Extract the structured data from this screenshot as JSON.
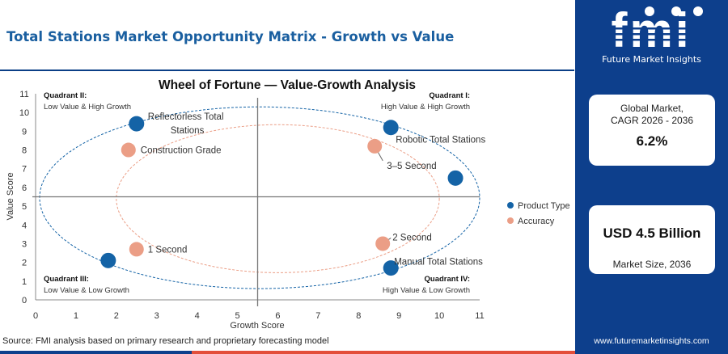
{
  "header": {
    "title": "Total Stations Market Opportunity Matrix - Growth vs Value"
  },
  "brand": {
    "logo": "fmi",
    "name": "Future Market Insights",
    "website": "www.futuremarketinsights.com"
  },
  "stats": {
    "cagr_label_1": "Global Market,",
    "cagr_label_2": "CAGR 2026 - 2036",
    "cagr_value": "6.2%",
    "size_value": "USD 4.5 Billion",
    "size_label": "Market Size, 2036"
  },
  "source": "Source: FMI analysis based on primary research and proprietary forecasting model",
  "colors": {
    "product": "#1463a6",
    "accuracy": "#eb9e86",
    "brand_blue": "#0d3f8c",
    "accent_red": "#e34e3a"
  },
  "chart_data": {
    "type": "scatter",
    "title": "Wheel of Fortune — Value-Growth Analysis",
    "xlabel": "Growth Score",
    "ylabel": "Value Score",
    "xlim": [
      0,
      11
    ],
    "ylim": [
      0,
      11
    ],
    "x_ticks": [
      0,
      1,
      2,
      3,
      4,
      5,
      6,
      7,
      8,
      9,
      10,
      11
    ],
    "y_ticks": [
      0,
      1,
      2,
      3,
      4,
      5,
      6,
      7,
      8,
      9,
      10,
      11
    ],
    "divider": {
      "x": 5.5,
      "y": 5.5
    },
    "grid": false,
    "legend_position": "right",
    "quadrants": [
      {
        "id": "q2",
        "title": "Quadrant II:",
        "desc": "Low Value & High Growth"
      },
      {
        "id": "q1",
        "title": "Quadrant I:",
        "desc": "High Value & High Growth"
      },
      {
        "id": "q3",
        "title": "Quadrant III:",
        "desc": "Low Value & Low Growth"
      },
      {
        "id": "q4",
        "title": "Quadrant IV:",
        "desc": "High Value & Low Growth"
      }
    ],
    "series": [
      {
        "name": "Product Type",
        "color": "#1463a6",
        "points": [
          {
            "label": "Reflectorless Total Stations",
            "x": 2.5,
            "y": 9.4
          },
          {
            "label": "Robotic Total Stations",
            "x": 8.8,
            "y": 9.2
          },
          {
            "label": "",
            "x": 10.4,
            "y": 6.5
          },
          {
            "label": "",
            "x": 1.8,
            "y": 2.1
          },
          {
            "label": "Manual Total Stations",
            "x": 8.8,
            "y": 1.7
          }
        ]
      },
      {
        "name": "Accuracy",
        "color": "#eb9e86",
        "points": [
          {
            "label": "Construction Grade",
            "x": 2.3,
            "y": 8.0
          },
          {
            "label": "3–5 Second",
            "x": 8.4,
            "y": 8.2
          },
          {
            "label": "1 Second",
            "x": 2.5,
            "y": 2.7
          },
          {
            "label": "2 Second",
            "x": 8.6,
            "y": 3.0
          }
        ]
      }
    ],
    "ellipses": [
      {
        "series": "Product Type",
        "center": [
          5.55,
          5.45
        ],
        "rx": 5.45,
        "ry": 4.85
      },
      {
        "series": "Accuracy",
        "center": [
          6.0,
          5.4
        ],
        "rx": 4.0,
        "ry": 3.95
      }
    ]
  }
}
